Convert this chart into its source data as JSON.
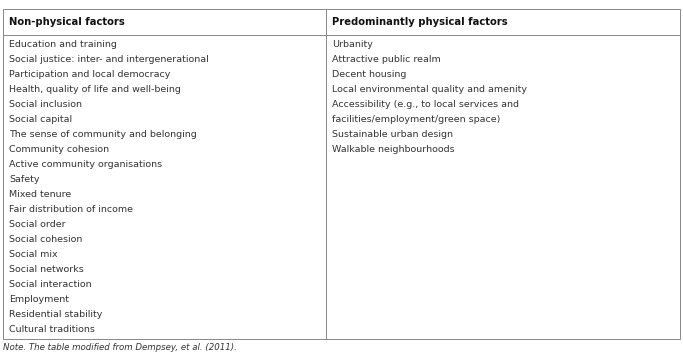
{
  "col1_header": "Non-physical factors",
  "col2_header": "Predominantly physical factors",
  "col1_items": [
    "Education and training",
    "Social justice: inter- and intergenerational",
    "Participation and local democracy",
    "Health, quality of life and well-being",
    "Social inclusion",
    "Social capital",
    "The sense of community and belonging",
    "Community cohesion",
    "Active community organisations",
    "Safety",
    "Mixed tenure",
    "Fair distribution of income",
    "Social order",
    "Social cohesion",
    "Social mix",
    "Social networks",
    "Social interaction",
    "Employment",
    "Residential stability",
    "Cultural traditions"
  ],
  "col2_items": [
    "Urbanity",
    "Attractive public realm",
    "Decent housing",
    "Local environmental quality and amenity",
    "Accessibility (e.g., to local services and",
    "facilities/employment/green space)",
    "Sustainable urban design",
    "Walkable neighbourhoods"
  ],
  "note": "Note. The table modified from Dempsey, et al. (2011).",
  "bg_color": "#ffffff",
  "border_color": "#888888",
  "text_color": "#333333",
  "header_color": "#111111",
  "font_size": 6.8,
  "header_font_size": 7.2,
  "note_font_size": 6.2,
  "col_split": 0.478
}
